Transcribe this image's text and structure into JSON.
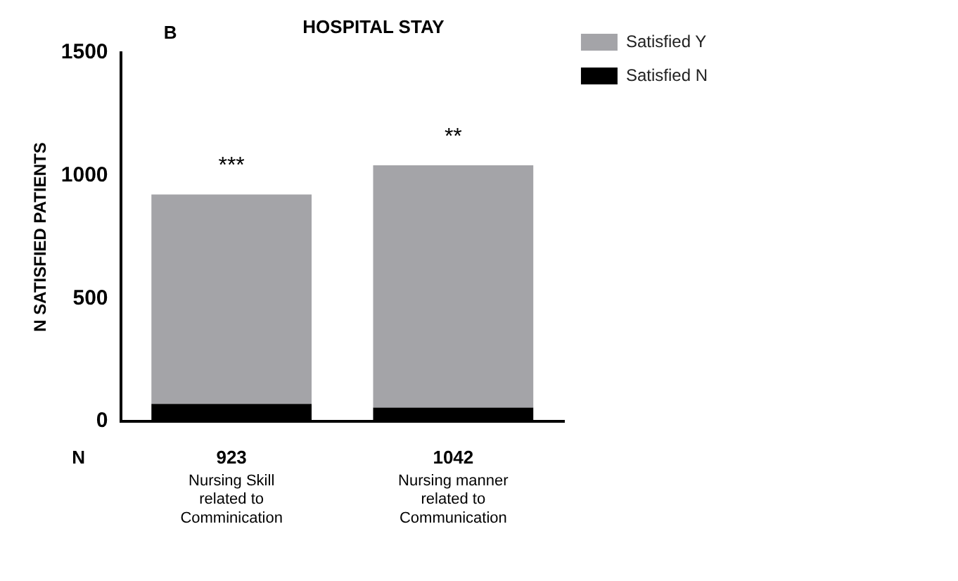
{
  "chart_data": {
    "type": "bar",
    "title": "HOSPITAL STAY",
    "ylabel": "N SATISFIED PATIENTS",
    "annotations": [
      "B",
      "N",
      {
        "text": "***",
        "x": "Nursing Skill related to Comminication",
        "y": 923
      },
      {
        "text": "**",
        "x": "Nursing manner related to Communication",
        "y": 1042
      }
    ],
    "categories": [
      "Nursing Skill related to Comminication",
      "Nursing manner related to Communication"
    ],
    "stacked": true,
    "series": [
      {
        "name": "Satisfied N",
        "color": "#000000",
        "values": [
          70,
          55
        ]
      },
      {
        "name": "Satisfied Y",
        "color": "#a4a4a8",
        "values": [
          853,
          987
        ]
      }
    ],
    "totals": [
      "923",
      "1042"
    ],
    "ylim": [
      0,
      1500
    ],
    "yticks": [
      0,
      500,
      1000,
      1500
    ],
    "grid": false,
    "legend": "top right"
  }
}
